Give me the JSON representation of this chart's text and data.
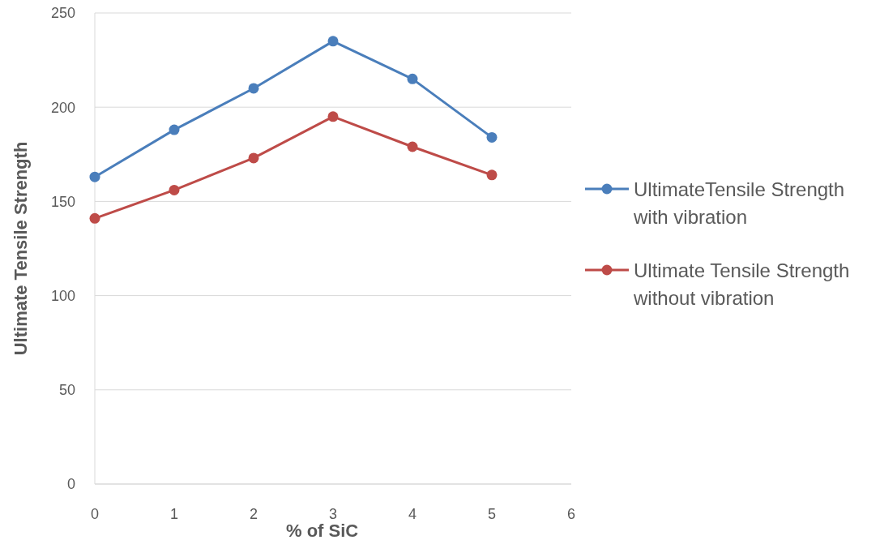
{
  "chart_data": {
    "type": "line",
    "xlabel": "% of SiC",
    "ylabel": "Ultimate Tensile Strength",
    "x": [
      0,
      1,
      2,
      3,
      4,
      5
    ],
    "series": [
      {
        "name": "UltimateTensile Strength with vibration",
        "color": "#4a7ebb",
        "values": [
          163,
          188,
          210,
          235,
          215,
          184
        ]
      },
      {
        "name": "Ultimate Tensile Strength without vibration",
        "color": "#be4b48",
        "values": [
          141,
          156,
          173,
          195,
          179,
          164
        ]
      }
    ],
    "xlim": [
      0,
      6
    ],
    "xticks": [
      0,
      1,
      2,
      3,
      4,
      5,
      6
    ],
    "ylim": [
      0,
      250
    ],
    "yticks": [
      0,
      50,
      100,
      150,
      200,
      250
    ],
    "grid": "y",
    "legend": "right",
    "marker": "circle",
    "line_style": "solid"
  }
}
